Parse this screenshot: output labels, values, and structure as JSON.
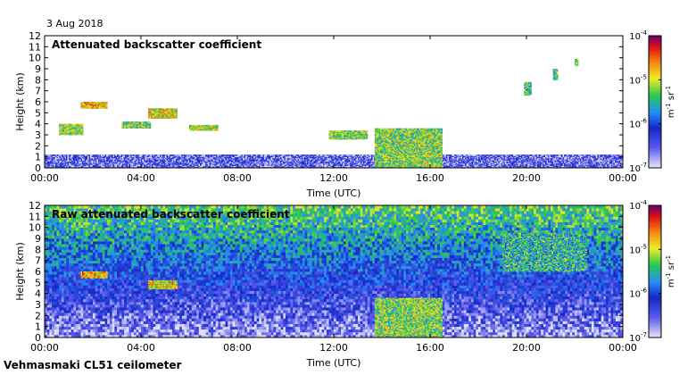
{
  "header": {
    "date": "3 Aug 2018"
  },
  "footer": {
    "site": "Vehmasmaki CL51 ceilometer"
  },
  "chart_data": [
    {
      "type": "heatmap",
      "title": "Attenuated backscatter coefficient",
      "xlabel": "Time (UTC)",
      "ylabel": "Height (km)",
      "x_ticks": [
        "00:00",
        "04:00",
        "08:00",
        "12:00",
        "16:00",
        "20:00",
        "00:00"
      ],
      "y_ticks": [
        "0",
        "1",
        "2",
        "3",
        "4",
        "5",
        "6",
        "7",
        "8",
        "9",
        "10",
        "11",
        "12"
      ],
      "xlim_hours": [
        0,
        24
      ],
      "ylim_km": [
        0,
        12
      ],
      "colorbar": {
        "scale": "log",
        "range": [
          1e-07,
          0.0001
        ],
        "tick_labels": [
          "10",
          "10",
          "10",
          "10"
        ],
        "tick_exponents": [
          "-7",
          "-6",
          "-5",
          "-4"
        ],
        "unit_parts": [
          "m",
          "-1",
          " sr",
          "-1"
        ]
      },
      "features": [
        {
          "kind": "layer",
          "t_start": 0.0,
          "t_end": 24.0,
          "h_low": 0.0,
          "h_high": 1.2,
          "level": 0.15
        },
        {
          "kind": "layer",
          "t_start": 0.6,
          "t_end": 1.6,
          "h_low": 3.0,
          "h_high": 4.0,
          "level": 0.6
        },
        {
          "kind": "layer",
          "t_start": 1.5,
          "t_end": 2.6,
          "h_low": 5.4,
          "h_high": 6.0,
          "level": 0.75
        },
        {
          "kind": "layer",
          "t_start": 3.2,
          "t_end": 4.4,
          "h_low": 3.6,
          "h_high": 4.2,
          "level": 0.6
        },
        {
          "kind": "layer",
          "t_start": 4.3,
          "t_end": 5.5,
          "h_low": 4.5,
          "h_high": 5.4,
          "level": 0.7
        },
        {
          "kind": "layer",
          "t_start": 6.0,
          "t_end": 7.2,
          "h_low": 3.4,
          "h_high": 3.9,
          "level": 0.65
        },
        {
          "kind": "layer",
          "t_start": 11.8,
          "t_end": 13.4,
          "h_low": 2.6,
          "h_high": 3.4,
          "level": 0.6
        },
        {
          "kind": "layer",
          "t_start": 13.7,
          "t_end": 16.5,
          "h_low": 0.0,
          "h_high": 3.6,
          "level": 0.6
        },
        {
          "kind": "layer",
          "t_start": 19.9,
          "t_end": 20.2,
          "h_low": 6.6,
          "h_high": 7.8,
          "level": 0.55
        },
        {
          "kind": "layer",
          "t_start": 21.1,
          "t_end": 21.3,
          "h_low": 8.0,
          "h_high": 9.0,
          "level": 0.55
        },
        {
          "kind": "layer",
          "t_start": 22.0,
          "t_end": 22.15,
          "h_low": 9.3,
          "h_high": 9.9,
          "level": 0.6
        }
      ]
    },
    {
      "type": "heatmap",
      "title": "Raw attenuated backscatter coefficient",
      "xlabel": "Time (UTC)",
      "ylabel": "Height (km)",
      "x_ticks": [
        "00:00",
        "04:00",
        "08:00",
        "12:00",
        "16:00",
        "20:00",
        "00:00"
      ],
      "y_ticks": [
        "0",
        "1",
        "2",
        "3",
        "4",
        "5",
        "6",
        "7",
        "8",
        "9",
        "10",
        "11",
        "12"
      ],
      "xlim_hours": [
        0,
        24
      ],
      "ylim_km": [
        0,
        12
      ],
      "colorbar": {
        "scale": "log",
        "range": [
          1e-07,
          0.0001
        ],
        "tick_labels": [
          "10",
          "10",
          "10",
          "10"
        ],
        "tick_exponents": [
          "-7",
          "-6",
          "-5",
          "-4"
        ],
        "unit_parts": [
          "m",
          "-1",
          " sr",
          "-1"
        ]
      },
      "features": [
        {
          "kind": "background_noise",
          "t_start": 0.0,
          "t_end": 24.0,
          "h_low": 0.0,
          "h_high": 12.0,
          "level": 0.45
        },
        {
          "kind": "layer",
          "t_start": 1.5,
          "t_end": 2.6,
          "h_low": 5.4,
          "h_high": 6.0,
          "level": 0.75
        },
        {
          "kind": "layer",
          "t_start": 4.3,
          "t_end": 5.5,
          "h_low": 4.4,
          "h_high": 5.2,
          "level": 0.7
        },
        {
          "kind": "layer",
          "t_start": 13.7,
          "t_end": 16.5,
          "h_low": 0.0,
          "h_high": 3.6,
          "level": 0.6
        },
        {
          "kind": "layer",
          "t_start": 19.0,
          "t_end": 22.5,
          "h_low": 6.0,
          "h_high": 9.5,
          "level": 0.5
        }
      ]
    }
  ]
}
